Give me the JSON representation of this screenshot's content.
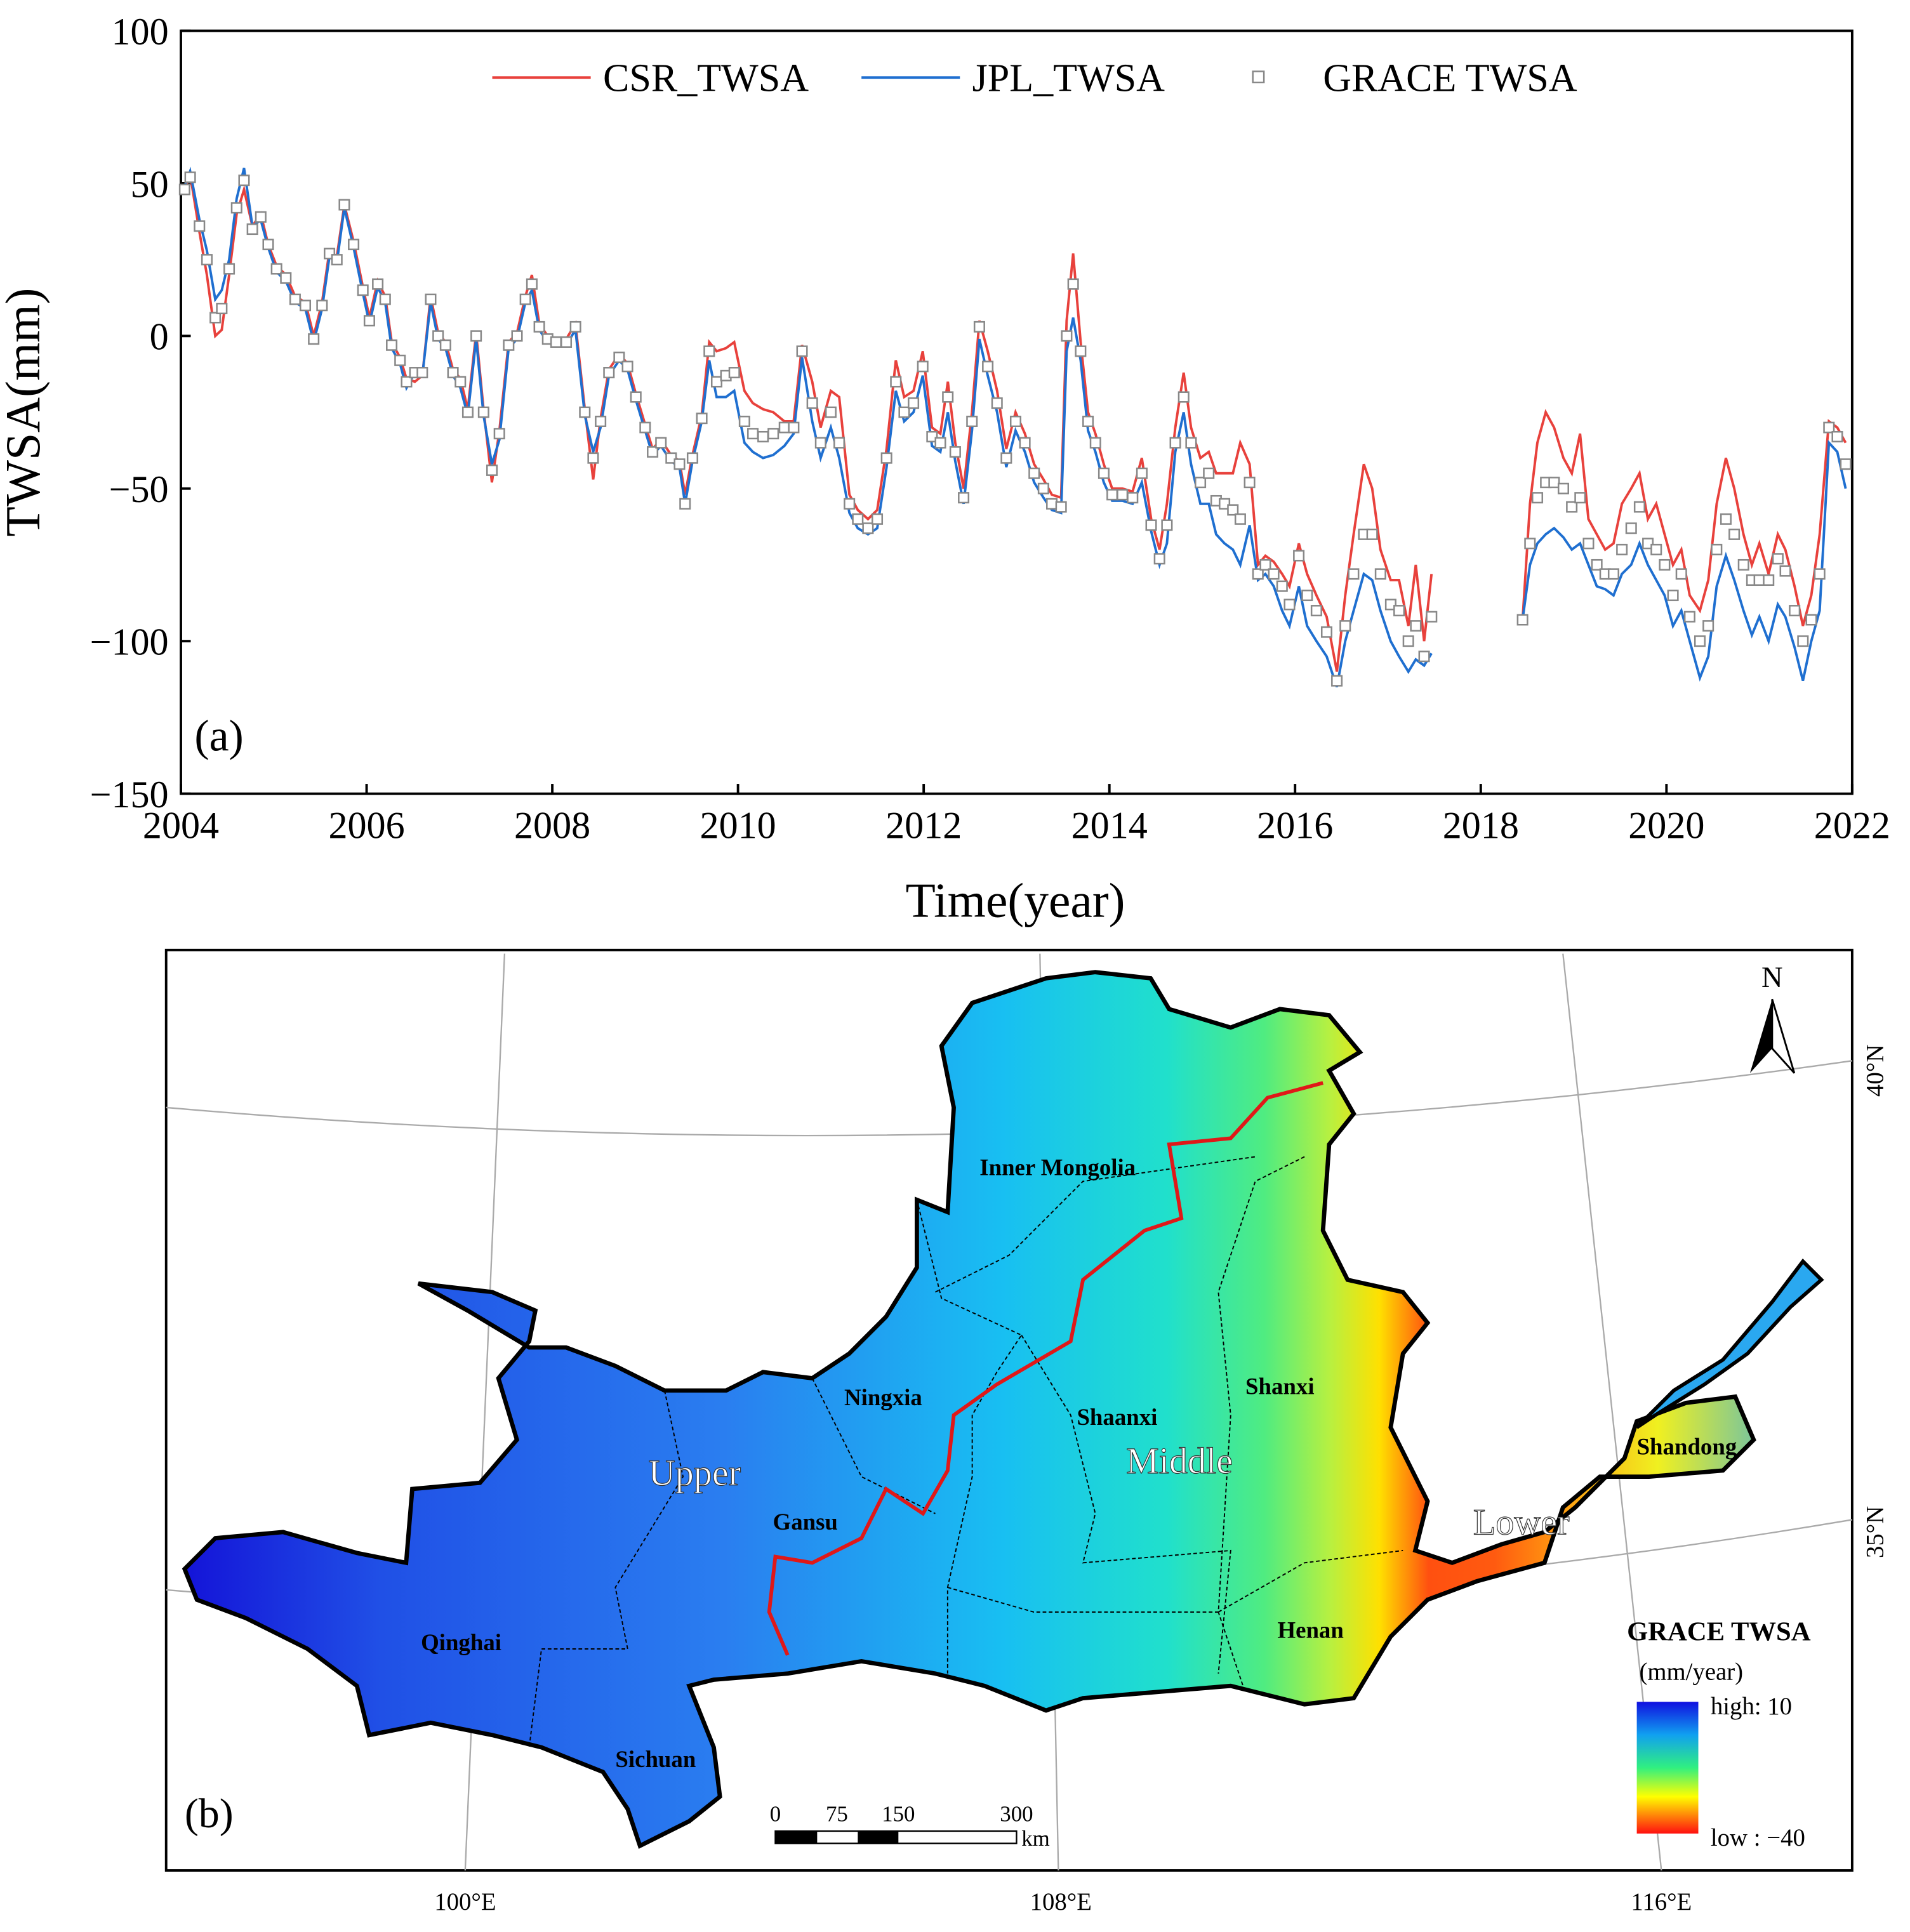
{
  "chart_data": {
    "type": "line",
    "ylabel": "TWSA(mm)",
    "xlabel": "Time(year)",
    "annotation": "(a)",
    "xlim": [
      2004,
      2022
    ],
    "xticks": [
      2004,
      2006,
      2008,
      2010,
      2012,
      2014,
      2016,
      2018,
      2020,
      2022
    ],
    "ylim": [
      -150,
      100
    ],
    "yticks": [
      {
        "value": -150,
        "label": "−150"
      },
      {
        "value": -100,
        "label": "−100"
      },
      {
        "value": -50,
        "label": "−50"
      },
      0,
      50,
      100
    ],
    "grid": false,
    "legend": "top",
    "x": [
      2004.04,
      2004.1,
      2004.2,
      2004.28,
      2004.37,
      2004.44,
      2004.52,
      2004.6,
      2004.68,
      2004.77,
      2004.86,
      2004.94,
      2005.03,
      2005.13,
      2005.23,
      2005.34,
      2005.43,
      2005.52,
      2005.6,
      2005.68,
      2005.76,
      2005.86,
      2005.96,
      2006.03,
      2006.12,
      2006.2,
      2006.27,
      2006.36,
      2006.43,
      2006.52,
      2006.6,
      2006.69,
      2006.77,
      2006.85,
      2006.93,
      2007.01,
      2007.09,
      2007.18,
      2007.26,
      2007.35,
      2007.43,
      2007.53,
      2007.62,
      2007.71,
      2007.78,
      2007.86,
      2007.95,
      2008.04,
      2008.15,
      2008.25,
      2008.35,
      2008.44,
      2008.52,
      2008.61,
      2008.72,
      2008.81,
      2008.9,
      2009.0,
      2009.08,
      2009.17,
      2009.28,
      2009.37,
      2009.43,
      2009.51,
      2009.61,
      2009.69,
      2009.77,
      2009.87,
      2009.96,
      2010.07,
      2010.16,
      2010.27,
      2010.38,
      2010.5,
      2010.6,
      2010.69,
      2010.8,
      2010.89,
      2011.0,
      2011.09,
      2011.2,
      2011.29,
      2011.4,
      2011.5,
      2011.6,
      2011.7,
      2011.79,
      2011.89,
      2011.99,
      2012.09,
      2012.18,
      2012.26,
      2012.34,
      2012.43,
      2012.52,
      2012.6,
      2012.69,
      2012.79,
      2012.89,
      2012.99,
      2013.09,
      2013.19,
      2013.29,
      2013.38,
      2013.48,
      2013.54,
      2013.61,
      2013.69,
      2013.77,
      2013.85,
      2013.94,
      2014.03,
      2014.14,
      2014.25,
      2014.35,
      2014.45,
      2014.54,
      2014.62,
      2014.71,
      2014.8,
      2014.88,
      2014.98,
      2015.07,
      2015.15,
      2015.24,
      2015.33,
      2015.41,
      2015.51,
      2015.6,
      2015.68,
      2015.77,
      2015.86,
      2015.94,
      2016.04,
      2016.13,
      2016.23,
      2016.34,
      2016.45,
      2016.54,
      2016.63,
      2016.74,
      2016.83,
      2016.92,
      2017.03,
      2017.12,
      2017.22,
      2017.3,
      2017.39,
      2017.47,
      2018.0,
      2018.45,
      2018.53,
      2018.61,
      2018.7,
      2018.79,
      2018.89,
      2018.98,
      2019.07,
      2019.16,
      2019.25,
      2019.34,
      2019.43,
      2019.52,
      2019.62,
      2019.71,
      2019.8,
      2019.89,
      2019.98,
      2020.07,
      2020.16,
      2020.25,
      2020.36,
      2020.45,
      2020.54,
      2020.64,
      2020.73,
      2020.83,
      2020.92,
      2021.0,
      2021.1,
      2021.2,
      2021.28,
      2021.38,
      2021.47,
      2021.56,
      2021.65,
      2021.75,
      2021.84,
      2021.93
    ],
    "series": [
      {
        "name": "CSR_TWSA",
        "color": "#e8413c",
        "style": "line",
        "values": [
          48,
          53,
          34,
          20,
          0,
          2,
          20,
          40,
          48,
          36,
          40,
          30,
          23,
          20,
          13,
          11,
          0,
          11,
          28,
          26,
          43,
          31,
          16,
          6,
          18,
          13,
          -2,
          -7,
          -14,
          -15,
          -13,
          13,
          1,
          -2,
          -11,
          -14,
          -24,
          1,
          -24,
          -48,
          -31,
          -2,
          1,
          13,
          20,
          4,
          0,
          -1,
          -1,
          4,
          -24,
          -47,
          -27,
          -11,
          -6,
          -9,
          -19,
          -29,
          -37,
          -34,
          -39,
          -41,
          -52,
          -39,
          -26,
          -2,
          -5,
          -4,
          -2,
          -18,
          -22,
          -24,
          -25,
          -28,
          -28,
          -3,
          -15,
          -30,
          -18,
          -20,
          -52,
          -57,
          -60,
          -57,
          -37,
          -8,
          -20,
          -18,
          -5,
          -30,
          -32,
          -15,
          -35,
          -50,
          -25,
          5,
          -5,
          -18,
          -37,
          -25,
          -32,
          -42,
          -47,
          -52,
          -53,
          5,
          27,
          -2,
          -25,
          -32,
          -42,
          -50,
          -50,
          -51,
          -40,
          -60,
          -70,
          -55,
          -30,
          -12,
          -30,
          -40,
          -38,
          -45,
          -45,
          -45,
          -35,
          -42,
          -75,
          -72,
          -74,
          -78,
          -82,
          -68,
          -78,
          -85,
          -92,
          -110,
          -85,
          -65,
          -42,
          -50,
          -70,
          -80,
          -80,
          -95,
          -75,
          -100,
          -78,
          null,
          -93,
          -55,
          -35,
          -25,
          -30,
          -40,
          -45,
          -32,
          -60,
          -65,
          -70,
          -68,
          -55,
          -50,
          -45,
          -60,
          -55,
          -65,
          -75,
          -70,
          -85,
          -90,
          -80,
          -55,
          -40,
          -50,
          -65,
          -75,
          -68,
          -78,
          -65,
          -70,
          -82,
          -95,
          -85,
          -65,
          -28,
          -30,
          -35
        ]
      },
      {
        "name": "JPL_TWSA",
        "color": "#1f6fd0",
        "style": "line",
        "values": [
          49,
          54,
          38,
          28,
          12,
          15,
          25,
          45,
          55,
          36,
          38,
          29,
          21,
          18,
          11,
          9,
          -2,
          9,
          26,
          24,
          42,
          29,
          14,
          4,
          16,
          11,
          -4,
          -9,
          -17,
          -12,
          -13,
          11,
          -1,
          -4,
          -13,
          -17,
          -26,
          -1,
          -26,
          -42,
          -34,
          -4,
          -1,
          11,
          15,
          2,
          -2,
          -3,
          -3,
          2,
          -26,
          -38,
          -30,
          -13,
          -8,
          -11,
          -21,
          -31,
          -39,
          -36,
          -41,
          -43,
          -55,
          -41,
          -28,
          -8,
          -20,
          -20,
          -18,
          -35,
          -38,
          -40,
          -39,
          -36,
          -32,
          -7,
          -28,
          -40,
          -30,
          -40,
          -58,
          -63,
          -65,
          -63,
          -43,
          -18,
          -28,
          -25,
          -13,
          -36,
          -38,
          -25,
          -41,
          -55,
          -31,
          -1,
          -13,
          -25,
          -43,
          -31,
          -38,
          -48,
          -53,
          -57,
          -58,
          -5,
          6,
          -8,
          -31,
          -38,
          -48,
          -54,
          -54,
          -55,
          -48,
          -64,
          -75,
          -68,
          -38,
          -25,
          -42,
          -55,
          -55,
          -65,
          -68,
          -70,
          -75,
          -62,
          -80,
          -78,
          -82,
          -90,
          -95,
          -82,
          -95,
          -100,
          -105,
          -115,
          -100,
          -90,
          -78,
          -80,
          -90,
          -100,
          -105,
          -110,
          -106,
          -108,
          -104,
          null,
          -93,
          -75,
          -68,
          -65,
          -63,
          -66,
          -70,
          -68,
          -75,
          -82,
          -83,
          -85,
          -78,
          -75,
          -68,
          -75,
          -80,
          -85,
          -95,
          -90,
          -100,
          -112,
          -105,
          -82,
          -72,
          -80,
          -90,
          -98,
          -92,
          -100,
          -88,
          -92,
          -102,
          -113,
          -100,
          -90,
          -35,
          -38,
          -50
        ]
      },
      {
        "name": "GRACE TWSA",
        "color": "#888888",
        "style": "square",
        "values": [
          48,
          52,
          36,
          25,
          6,
          9,
          22,
          42,
          51,
          35,
          39,
          30,
          22,
          19,
          12,
          10,
          -1,
          10,
          27,
          25,
          43,
          30,
          15,
          5,
          17,
          12,
          -3,
          -8,
          -15,
          -12,
          -12,
          12,
          0,
          -3,
          -12,
          -15,
          -25,
          0,
          -25,
          -44,
          -32,
          -3,
          0,
          12,
          17,
          3,
          -1,
          -2,
          -2,
          3,
          -25,
          -40,
          -28,
          -12,
          -7,
          -10,
          -20,
          -30,
          -38,
          -35,
          -40,
          -42,
          -55,
          -40,
          -27,
          -5,
          -15,
          -13,
          -12,
          -28,
          -32,
          -33,
          -32,
          -30,
          -30,
          -5,
          -22,
          -35,
          -25,
          -35,
          -55,
          -60,
          -63,
          -60,
          -40,
          -15,
          -25,
          -22,
          -10,
          -33,
          -35,
          -20,
          -38,
          -53,
          -28,
          3,
          -10,
          -22,
          -40,
          -28,
          -35,
          -45,
          -50,
          -55,
          -56,
          0,
          17,
          -5,
          -28,
          -35,
          -45,
          -52,
          -52,
          -53,
          -45,
          -62,
          -73,
          -62,
          -35,
          -20,
          -35,
          -48,
          -45,
          -54,
          -55,
          -57,
          -60,
          -48,
          -78,
          -75,
          -78,
          -82,
          -88,
          -72,
          -85,
          -90,
          -97,
          -113,
          -95,
          -78,
          -65,
          -65,
          -78,
          -88,
          -90,
          -100,
          -95,
          -105,
          -92,
          null,
          -93,
          -68,
          -53,
          -48,
          -48,
          -50,
          -56,
          -53,
          -68,
          -75,
          -78,
          -78,
          -70,
          -63,
          -56,
          -68,
          -70,
          -75,
          -85,
          -78,
          -92,
          -100,
          -95,
          -70,
          -60,
          -65,
          -75,
          -80,
          -80,
          -80,
          -73,
          -77,
          -90,
          -100,
          -93,
          -78,
          -30,
          -33,
          -42
        ]
      }
    ]
  },
  "map": {
    "panel": "(b)",
    "regions": [
      "Inner Mongolia",
      "Ningxia",
      "Shaanxi",
      "Shanxi",
      "Gansu",
      "Qinghai",
      "Sichuan",
      "Henan",
      "Shandong"
    ],
    "reaches": [
      "Upper",
      "Middle",
      "Lower"
    ],
    "longitudes": [
      "100°E",
      "108°E",
      "116°E"
    ],
    "latitudes": [
      "40°N",
      "35°N"
    ],
    "scale": {
      "ticks": [
        "0",
        "75",
        "150",
        "300"
      ],
      "unit": "km"
    },
    "north": "N",
    "legend": {
      "title": "GRACE TWSA",
      "unit": "(mm/year)",
      "high": "high: 10",
      "low": "low : −40"
    }
  }
}
